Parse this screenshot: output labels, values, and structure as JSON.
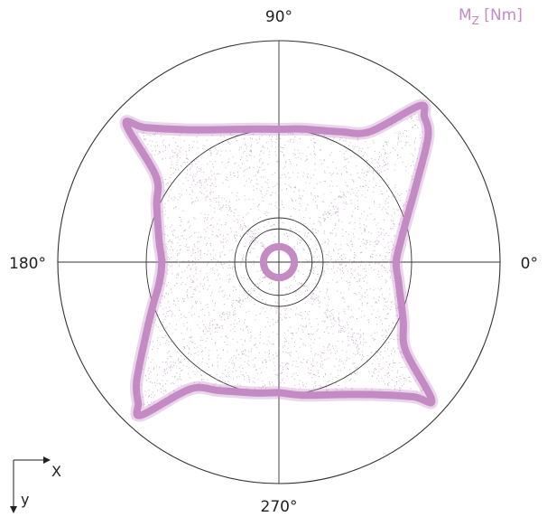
{
  "chart_data": {
    "type": "scatter",
    "subtype": "polar",
    "title_main": "M",
    "title_sub": "Z",
    "title_unit": " [Nm]",
    "angle_labels": [
      "0°",
      "90°",
      "180°",
      "270°"
    ],
    "radial_rings": 4,
    "radial_grid": true,
    "axes_indicator": {
      "x_label": "X",
      "y_label": "y"
    },
    "colors": {
      "series": "#c48ac4",
      "scatter": "#b89ab8",
      "grid": "#333333",
      "text": "#222222"
    },
    "series": [
      {
        "name": "",
        "description": "four-lobed envelope curve (thick band) with inner ring",
        "points_polar_deg_r": [
          [
            0,
            0.53
          ],
          [
            10,
            0.56
          ],
          [
            20,
            0.62
          ],
          [
            30,
            0.72
          ],
          [
            40,
            0.88
          ],
          [
            45,
            0.93
          ],
          [
            48,
            0.95
          ],
          [
            55,
            0.72
          ],
          [
            65,
            0.65
          ],
          [
            80,
            0.61
          ],
          [
            90,
            0.6
          ],
          [
            100,
            0.61
          ],
          [
            115,
            0.66
          ],
          [
            125,
            0.73
          ],
          [
            135,
            0.86
          ],
          [
            138,
            0.93
          ],
          [
            145,
            0.68
          ],
          [
            155,
            0.61
          ],
          [
            170,
            0.55
          ],
          [
            180,
            0.53
          ],
          [
            190,
            0.55
          ],
          [
            200,
            0.61
          ],
          [
            210,
            0.7
          ],
          [
            220,
            0.84
          ],
          [
            225,
            0.9
          ],
          [
            228,
            0.93
          ],
          [
            235,
            0.7
          ],
          [
            245,
            0.64
          ],
          [
            260,
            0.6
          ],
          [
            270,
            0.59
          ],
          [
            280,
            0.61
          ],
          [
            295,
            0.66
          ],
          [
            305,
            0.73
          ],
          [
            315,
            0.86
          ],
          [
            318,
            0.93
          ],
          [
            325,
            0.7
          ],
          [
            335,
            0.62
          ],
          [
            350,
            0.55
          ],
          [
            360,
            0.53
          ]
        ],
        "inner_ring_r": 0.07
      }
    ]
  }
}
